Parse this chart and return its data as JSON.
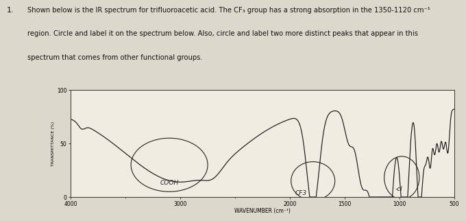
{
  "title_number": "1.",
  "title_text": "Shown below is the IR spectrum for trifluoroacetic acid. The CF₃ group has a strong absorption in the 1350-1120 cm⁻¹ region. Circle and label it on the spectrum below. Also, circle and label two more distinct peaks that appear in this spectrum that comes from other functional groups.",
  "xmin": 4000,
  "xmax": 500,
  "ymin": 0,
  "ymax": 100,
  "xlabel": "WAVENUMBER (cm⁻¹)",
  "ylabel": "TRANSMITTANCE (%)",
  "yticks": [
    0,
    50,
    100
  ],
  "xticks": [
    4000,
    3000,
    2000,
    1500,
    1000,
    500
  ],
  "bg_color": "#ddd8cc",
  "plot_bg": "#f0ece2",
  "line_color": "#1a1a1a"
}
